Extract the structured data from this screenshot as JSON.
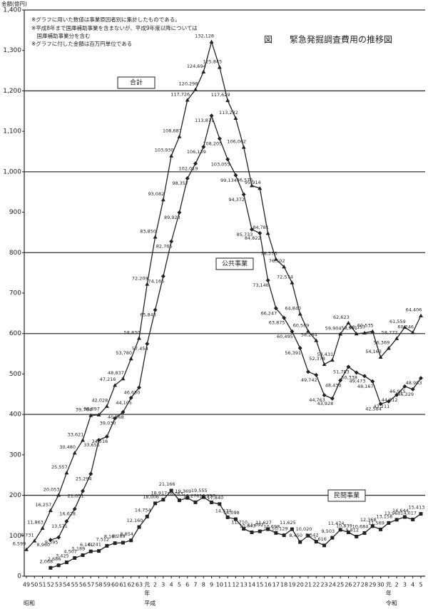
{
  "chart_data": {
    "type": "line",
    "title": "図　　緊急発掘調査費用の推移図",
    "y_label": "金額(億円)",
    "notes": [
      "※グラフに用いた数値は事業原因者別に集計したものである。",
      "※平成8年まで国庫補助事業を含まないが、平成9年度以降については",
      "　国庫補助事業分を含む",
      "※グラフに付した金額は百万円単位である"
    ],
    "eras": [
      "昭和",
      "平成",
      "令和"
    ],
    "year_suffix": "年",
    "categories": [
      "49",
      "50",
      "51",
      "52",
      "53",
      "54",
      "55",
      "56",
      "57",
      "58",
      "59",
      "60",
      "61",
      "62",
      "63",
      "元",
      "2",
      "3",
      "4",
      "5",
      "6",
      "7",
      "8",
      "9",
      "10",
      "11",
      "12",
      "13",
      "14",
      "15",
      "16",
      "17",
      "18",
      "19",
      "20",
      "21",
      "22",
      "23",
      "24",
      "25",
      "26",
      "27",
      "28",
      "29",
      "30",
      "元",
      "2",
      "3",
      "4",
      "5"
    ],
    "ylim": [
      0,
      1400
    ],
    "yticks": [
      0,
      100,
      200,
      300,
      400,
      500,
      600,
      700,
      800,
      900,
      {
        "value": 1000,
        "label": "1,000"
      },
      {
        "value": 1100,
        "label": "1,100"
      },
      {
        "value": 1200,
        "label": "1,200"
      },
      {
        "value": 1300,
        "label": "1,300"
      },
      {
        "value": 1400,
        "label": "1,400"
      }
    ],
    "grid": true,
    "series": [
      {
        "name": "合計",
        "color": "#222222",
        "marker": "triangle",
        "values": [
          65.99,
          87.31,
          118.63,
          162.57,
          200.53,
          255.57,
          304.8,
          336.21,
          397.64,
          398.97,
          420.28,
          472.16,
          488.37,
          537.8,
          588.3,
          722.09,
          838.5,
          930.82,
          1039.3,
          1086.87,
          1177.26,
          1202.98,
          1246.94,
          1321.28,
          1258.45,
          1176.29,
          1132.32,
          1060.62,
          965.76,
          959.14,
          847.81,
          783.76,
          765.02,
          725.74,
          648.4,
          605.69,
          582.84,
          523.78,
          534.31,
          599.04,
          626.23,
          599.51,
          601.57,
          605.35,
          541.63,
          563.69,
          587.72,
          615.59,
          602.46,
          644.06
        ],
        "value_labels": [
          "6,599",
          "8,731",
          "11,863",
          "16,257",
          "20,053",
          "25,557",
          "30,480",
          "33,621",
          "39,764",
          "39,897",
          "42,028",
          "47,216",
          "48,837",
          "53,780",
          "58,830",
          "72,209",
          "83,850",
          "93,082",
          "103,930",
          "108,687",
          "117,726",
          "120,298",
          "124,694",
          "132,128",
          "125,845",
          "117,629",
          "113,232",
          "106,062",
          "96,576",
          "95,914",
          "84,781",
          "78,376",
          "76,502",
          "72,574",
          "64,840",
          "60,569",
          "58,284",
          "52,378",
          "53,431",
          "59,904",
          "62,623",
          "59,951",
          "60,157",
          "60,535",
          "54,163",
          "56,369",
          "58,772",
          "61,559",
          "60,246",
          "64,406"
        ]
      },
      {
        "name": "公共事業",
        "color": "#222222",
        "marker": "diamond",
        "values": [
          null,
          null,
          null,
          89.6,
          95.95,
          135.71,
          166.28,
          210.51,
          252.94,
          336.55,
          345.16,
          390.3,
          405.68,
          441.05,
          466.5,
          574.54,
          658.43,
          741.65,
          827.65,
          899.23,
          983.57,
          1020.19,
          1061.39,
          1138.71,
          1082.05,
          1030.55,
          991.34,
          943.72,
          857.33,
          848.22,
          731.46,
          662.47,
          638.75,
          604.95,
          563.91,
          505.49,
          497.42,
          447.63,
          439.28,
          484.3,
          517.83,
          503.38,
          494.73,
          481.67,
          425.84,
          432.11,
          448.12,
          469.15,
          462.29,
          489.83
        ],
        "value_labels": [
          null,
          null,
          null,
          "8,960",
          "9,595",
          "13,571",
          "16,628",
          "21,051",
          "25,294",
          "33,655",
          "34,516",
          "39,030",
          "40,568",
          "44,105",
          "46,650",
          "57,454",
          "65,843",
          "74,165",
          "82,765",
          "89,923",
          "98,357",
          "102,019",
          "106,139",
          "113,871",
          "108,205",
          "103,055",
          "99,134",
          "94,372",
          "85,733",
          "84,822",
          "73,146",
          "66,247",
          "63,875",
          "60,495",
          "56,391",
          null,
          "49,742",
          "44,763",
          "43,928",
          "48,430",
          "51,783",
          "50,338",
          "49,473",
          "48,167",
          "42,584",
          "43,211",
          "44,812",
          "46,915",
          "46,229",
          "48,983"
        ]
      },
      {
        "name": "民間事業",
        "color": "#222222",
        "marker": "square",
        "values": [
          null,
          null,
          null,
          20.68,
          26.86,
          34.25,
          45.07,
          51.89,
          61.41,
          62.41,
          75.12,
          81.67,
          82.89,
          88.54,
          121.6,
          147.54,
          180.06,
          189.17,
          211.66,
          187.63,
          193.69,
          182.76,
          195.55,
          182.57,
          178.4,
          145.74,
          140.98,
          117.1,
          108.43,
          110.92,
          116.27,
          106.98,
          101.29,
          116.25,
          84.5,
          100.2,
          85.42,
          76.16,
          95.03,
          114.74,
          108.39,
          98.12,
          106.84,
          123.68,
          115.69,
          131.58,
          139.6,
          146.44,
          140.17,
          154.13
        ],
        "value_labels": [
          null,
          null,
          null,
          "2,068",
          "2,686",
          "3,425",
          "4,507",
          "5,189",
          "6,141",
          "6,241",
          "7,512",
          "8,167",
          "8,289",
          "8,854",
          "12,160",
          "14,754",
          "18,006",
          "18,917",
          "21,166",
          "18,763",
          "19,369",
          "18,276",
          "19,555",
          "18,257",
          "17,840",
          "14,574",
          "14,098",
          "11,710",
          "10,843",
          "11,092",
          "11,627",
          "10,698",
          "10,129",
          "11,625",
          "8,450",
          "10,020",
          "8,542",
          "7,616",
          "9,503",
          "11,474",
          "10,839",
          "9,812",
          "10,684",
          "12,368",
          "11,569",
          "13,158",
          "13,960",
          "14,644",
          "14,017",
          "15,413"
        ]
      }
    ]
  }
}
